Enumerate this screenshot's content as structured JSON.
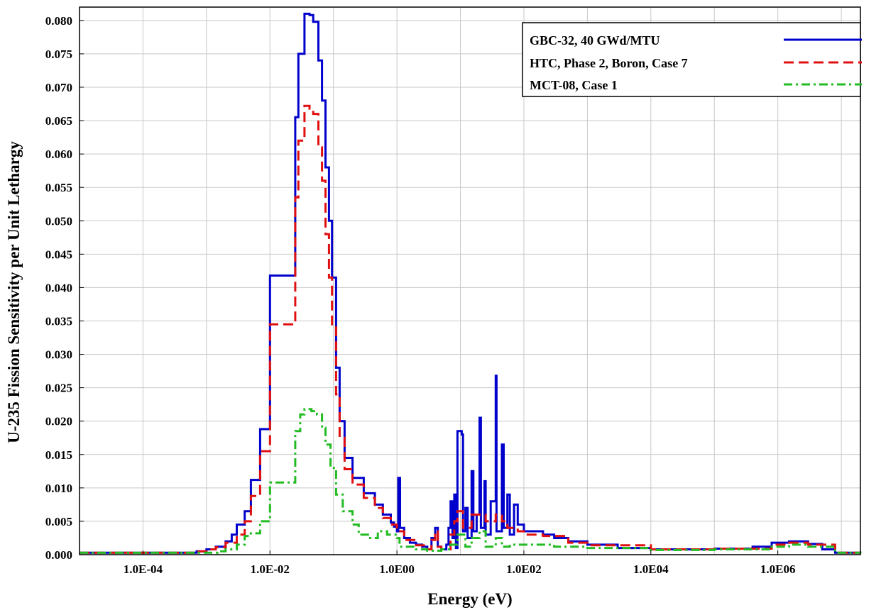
{
  "chart_data": {
    "type": "line",
    "title": "",
    "xlabel": "Energy (eV)",
    "ylabel": "U-235 Fission Sensitivity per Unit Lethargy",
    "xscale": "log",
    "xlim": [
      1e-05,
      20000000
    ],
    "ylim": [
      0,
      0.082
    ],
    "grid": true,
    "legend_position": "top-right",
    "x_ticks": [
      {
        "value": 0.0001,
        "label": "1.0E-04"
      },
      {
        "value": 0.01,
        "label": "1.0E-02"
      },
      {
        "value": 1,
        "label": "1.0E00"
      },
      {
        "value": 100,
        "label": "1.0E02"
      },
      {
        "value": 10000,
        "label": "1.0E04"
      },
      {
        "value": 1000000,
        "label": "1.0E06"
      }
    ],
    "x_minor_grid": [
      0.001,
      0.1,
      10,
      1000,
      100000,
      10000000
    ],
    "y_ticks": [
      {
        "value": 0,
        "label": "0.000"
      },
      {
        "value": 0.005,
        "label": "0.005"
      },
      {
        "value": 0.01,
        "label": "0.010"
      },
      {
        "value": 0.015,
        "label": "0.015"
      },
      {
        "value": 0.02,
        "label": "0.020"
      },
      {
        "value": 0.025,
        "label": "0.025"
      },
      {
        "value": 0.03,
        "label": "0.030"
      },
      {
        "value": 0.035,
        "label": "0.035"
      },
      {
        "value": 0.04,
        "label": "0.040"
      },
      {
        "value": 0.045,
        "label": "0.045"
      },
      {
        "value": 0.05,
        "label": "0.050"
      },
      {
        "value": 0.055,
        "label": "0.055"
      },
      {
        "value": 0.06,
        "label": "0.060"
      },
      {
        "value": 0.065,
        "label": "0.065"
      },
      {
        "value": 0.07,
        "label": "0.070"
      },
      {
        "value": 0.075,
        "label": "0.075"
      },
      {
        "value": 0.08,
        "label": "0.080"
      }
    ],
    "series": [
      {
        "name": "GBC-32, 40 GWd/MTU",
        "color": "#0000cc",
        "dash": "solid",
        "points": [
          [
            1e-05,
            0.0003
          ],
          [
            0.0004,
            0.0003
          ],
          [
            0.0006,
            0.0003
          ],
          [
            0.0007,
            0.0005
          ],
          [
            0.001,
            0.0008
          ],
          [
            0.0014,
            0.0012
          ],
          [
            0.002,
            0.002
          ],
          [
            0.0025,
            0.003
          ],
          [
            0.003,
            0.0045
          ],
          [
            0.004,
            0.0065
          ],
          [
            0.005,
            0.0112
          ],
          [
            0.007,
            0.0188
          ],
          [
            0.01,
            0.0418
          ],
          [
            0.02,
            0.0418
          ],
          [
            0.025,
            0.0655
          ],
          [
            0.028,
            0.075
          ],
          [
            0.035,
            0.081
          ],
          [
            0.042,
            0.0808
          ],
          [
            0.048,
            0.0798
          ],
          [
            0.058,
            0.074
          ],
          [
            0.066,
            0.068
          ],
          [
            0.075,
            0.058
          ],
          [
            0.085,
            0.05
          ],
          [
            0.095,
            0.0415
          ],
          [
            0.11,
            0.028
          ],
          [
            0.125,
            0.02
          ],
          [
            0.15,
            0.0145
          ],
          [
            0.2,
            0.0115
          ],
          [
            0.3,
            0.0092
          ],
          [
            0.45,
            0.0075
          ],
          [
            0.6,
            0.006
          ],
          [
            0.8,
            0.0048
          ],
          [
            0.9,
            0.0042
          ],
          [
            1.0,
            0.0035
          ],
          [
            1.05,
            0.0115
          ],
          [
            1.12,
            0.004
          ],
          [
            1.3,
            0.0025
          ],
          [
            1.6,
            0.0018
          ],
          [
            2.0,
            0.0015
          ],
          [
            2.5,
            0.0012
          ],
          [
            3.0,
            0.0008
          ],
          [
            3.5,
            0.0025
          ],
          [
            4.0,
            0.004
          ],
          [
            4.4,
            0.0012
          ],
          [
            5.0,
            0.0008
          ],
          [
            6.0,
            0.0015
          ],
          [
            6.5,
            0.004
          ],
          [
            7.0,
            0.008
          ],
          [
            7.5,
            0.0025
          ],
          [
            8.0,
            0.009
          ],
          [
            8.5,
            0.001
          ],
          [
            9.0,
            0.0185
          ],
          [
            10.5,
            0.018
          ],
          [
            11.0,
            0.0035
          ],
          [
            12.0,
            0.007
          ],
          [
            13.0,
            0.0025
          ],
          [
            15.0,
            0.0125
          ],
          [
            16.0,
            0.0035
          ],
          [
            18.0,
            0.006
          ],
          [
            20.0,
            0.0205
          ],
          [
            21.0,
            0.004
          ],
          [
            24.0,
            0.011
          ],
          [
            25.0,
            0.003
          ],
          [
            30.0,
            0.008
          ],
          [
            36.0,
            0.0268
          ],
          [
            37.0,
            0.0035
          ],
          [
            45.0,
            0.0165
          ],
          [
            48.0,
            0.004
          ],
          [
            55.0,
            0.009
          ],
          [
            60.0,
            0.003
          ],
          [
            70.0,
            0.0075
          ],
          [
            80.0,
            0.0045
          ],
          [
            100.0,
            0.0035
          ],
          [
            150.0,
            0.0035
          ],
          [
            200.0,
            0.003
          ],
          [
            300.0,
            0.0025
          ],
          [
            500.0,
            0.002
          ],
          [
            1000.0,
            0.0015
          ],
          [
            3000.0,
            0.001
          ],
          [
            10000.0,
            0.0008
          ],
          [
            100000.0,
            0.0009
          ],
          [
            400000.0,
            0.0012
          ],
          [
            800000.0,
            0.0018
          ],
          [
            1500000.0,
            0.002
          ],
          [
            3000000.0,
            0.0016
          ],
          [
            5000000.0,
            0.0008
          ],
          [
            8000000.0,
            0.0003
          ],
          [
            20000000.0,
            0.0002
          ]
        ]
      },
      {
        "name": "HTC, Phase 2, Boron, Case 7",
        "color": "#e01010",
        "dash": "dashed",
        "points": [
          [
            1e-05,
            0.0003
          ],
          [
            0.0004,
            0.0003
          ],
          [
            0.0006,
            0.0003
          ],
          [
            0.0007,
            0.0005
          ],
          [
            0.001,
            0.0008
          ],
          [
            0.0014,
            0.0011
          ],
          [
            0.002,
            0.0018
          ],
          [
            0.003,
            0.003
          ],
          [
            0.004,
            0.005
          ],
          [
            0.005,
            0.0088
          ],
          [
            0.007,
            0.0155
          ],
          [
            0.01,
            0.0345
          ],
          [
            0.02,
            0.0345
          ],
          [
            0.025,
            0.0535
          ],
          [
            0.028,
            0.062
          ],
          [
            0.035,
            0.0672
          ],
          [
            0.042,
            0.0668
          ],
          [
            0.048,
            0.066
          ],
          [
            0.058,
            0.061
          ],
          [
            0.066,
            0.056
          ],
          [
            0.075,
            0.048
          ],
          [
            0.085,
            0.0415
          ],
          [
            0.095,
            0.0345
          ],
          [
            0.11,
            0.024
          ],
          [
            0.125,
            0.0175
          ],
          [
            0.15,
            0.0128
          ],
          [
            0.2,
            0.0105
          ],
          [
            0.3,
            0.0085
          ],
          [
            0.45,
            0.007
          ],
          [
            0.6,
            0.0055
          ],
          [
            0.8,
            0.0045
          ],
          [
            1.0,
            0.0035
          ],
          [
            1.3,
            0.0022
          ],
          [
            2.0,
            0.0014
          ],
          [
            3.0,
            0.0008
          ],
          [
            3.5,
            0.0022
          ],
          [
            4.0,
            0.0035
          ],
          [
            4.4,
            0.0012
          ],
          [
            5.0,
            0.0008
          ],
          [
            7.0,
            0.003
          ],
          [
            8.0,
            0.005
          ],
          [
            9.0,
            0.0065
          ],
          [
            11.0,
            0.004
          ],
          [
            15.0,
            0.006
          ],
          [
            20.0,
            0.006
          ],
          [
            25.0,
            0.005
          ],
          [
            36.0,
            0.006
          ],
          [
            45.0,
            0.005
          ],
          [
            55.0,
            0.004
          ],
          [
            80.0,
            0.0035
          ],
          [
            100.0,
            0.003
          ],
          [
            200.0,
            0.0028
          ],
          [
            500.0,
            0.0018
          ],
          [
            1000.0,
            0.0014
          ],
          [
            10000.0,
            0.0008
          ],
          [
            100000.0,
            0.0009
          ],
          [
            800000.0,
            0.0015
          ],
          [
            1500000.0,
            0.0018
          ],
          [
            3000000.0,
            0.0015
          ],
          [
            8000000.0,
            0.0003
          ],
          [
            20000000.0,
            0.0002
          ]
        ]
      },
      {
        "name": "MCT-08, Case 1",
        "color": "#22bb22",
        "dash": "dashdot",
        "points": [
          [
            1e-05,
            0.0003
          ],
          [
            0.0004,
            0.0003
          ],
          [
            0.0006,
            0.0003
          ],
          [
            0.001,
            0.0003
          ],
          [
            0.0015,
            0.0005
          ],
          [
            0.002,
            0.0008
          ],
          [
            0.003,
            0.0015
          ],
          [
            0.004,
            0.0028
          ],
          [
            0.005,
            0.0032
          ],
          [
            0.007,
            0.005
          ],
          [
            0.01,
            0.0108
          ],
          [
            0.02,
            0.0108
          ],
          [
            0.025,
            0.0185
          ],
          [
            0.03,
            0.021
          ],
          [
            0.035,
            0.0218
          ],
          [
            0.045,
            0.0215
          ],
          [
            0.055,
            0.021
          ],
          [
            0.066,
            0.019
          ],
          [
            0.075,
            0.0165
          ],
          [
            0.09,
            0.013
          ],
          [
            0.11,
            0.009
          ],
          [
            0.14,
            0.0065
          ],
          [
            0.2,
            0.0045
          ],
          [
            0.25,
            0.003
          ],
          [
            0.35,
            0.0025
          ],
          [
            0.5,
            0.0035
          ],
          [
            0.7,
            0.003
          ],
          [
            1.0,
            0.0025
          ],
          [
            1.1,
            0.0012
          ],
          [
            2.0,
            0.0008
          ],
          [
            3.0,
            0.0006
          ],
          [
            5.0,
            0.0008
          ],
          [
            7.0,
            0.0015
          ],
          [
            9.0,
            0.003
          ],
          [
            12.0,
            0.0012
          ],
          [
            15.0,
            0.0025
          ],
          [
            20.0,
            0.0035
          ],
          [
            25.0,
            0.0012
          ],
          [
            36.0,
            0.0025
          ],
          [
            45.0,
            0.0012
          ],
          [
            60.0,
            0.0015
          ],
          [
            100.0,
            0.0015
          ],
          [
            300.0,
            0.0012
          ],
          [
            1000.0,
            0.001
          ],
          [
            10000.0,
            0.0007
          ],
          [
            100000.0,
            0.0008
          ],
          [
            800000.0,
            0.0012
          ],
          [
            1500000.0,
            0.0015
          ],
          [
            3000000.0,
            0.0012
          ],
          [
            8000000.0,
            0.0003
          ],
          [
            20000000.0,
            0.0002
          ]
        ]
      }
    ]
  }
}
